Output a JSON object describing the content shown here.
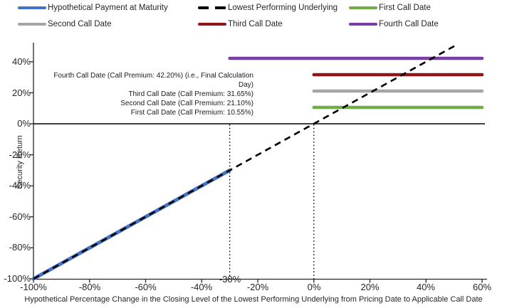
{
  "chart_data": {
    "type": "line",
    "title": "",
    "xlabel": "Hypothetical Percentage Change in the Closing Level of the Lowest Performing Underlying from Pricing Date to Applicable Call Date",
    "ylabel": "Security Return",
    "xlim": [
      -100,
      60
    ],
    "ylim": [
      -100,
      50
    ],
    "grid": false,
    "legend_position": "top",
    "x_ticks": [
      -100,
      -80,
      -60,
      -40,
      -20,
      0,
      20,
      40,
      60
    ],
    "x_tick_labels": [
      "-100%",
      "-80%",
      "-60%",
      "-40%",
      "-20%",
      "0%",
      "20%",
      "40%",
      "60%"
    ],
    "y_ticks": [
      40,
      20,
      0,
      -20,
      -40,
      -60,
      -80,
      -100
    ],
    "y_tick_labels": [
      "40%",
      "20%",
      "0%",
      "-20%",
      "-40%",
      "-60%",
      "-80%",
      "-100%"
    ],
    "threshold_label": "-30%",
    "reference_lines": {
      "vertical_dotted_x": [
        -30,
        0
      ],
      "horizontal_solid_y": 0
    },
    "series": [
      {
        "name": "First Call Date",
        "color": "#70AD47",
        "style": "solid",
        "stroke_width": 4.5,
        "call_premium": 10.55,
        "points": [
          [
            0,
            10.55
          ],
          [
            60,
            10.55
          ]
        ]
      },
      {
        "name": "Second Call Date",
        "color": "#A6A6A6",
        "style": "solid",
        "stroke_width": 4.5,
        "call_premium": 21.1,
        "points": [
          [
            0,
            21.1
          ],
          [
            60,
            21.1
          ]
        ]
      },
      {
        "name": "Third Call Date",
        "color": "#8E1616",
        "style": "solid",
        "stroke_width": 4.5,
        "call_premium": 31.65,
        "points": [
          [
            0,
            31.65
          ],
          [
            60,
            31.65
          ]
        ]
      },
      {
        "name": "Fourth Call Date",
        "color": "#7C3CA6",
        "style": "solid",
        "stroke_width": 4.5,
        "call_premium": 42.2,
        "points": [
          [
            -30,
            42.2
          ],
          [
            60,
            42.2
          ]
        ]
      },
      {
        "name": "Hypothetical Payment at Maturity",
        "color": "#4472C4",
        "style": "solid",
        "stroke_width": 5,
        "points": [
          [
            -100,
            -100
          ],
          [
            -30,
            -30
          ]
        ]
      },
      {
        "name": "Lowest Performing Underlying",
        "color": "#000000",
        "style": "dashed",
        "stroke_width": 2.6,
        "dash": "9 6.5",
        "points": [
          [
            -100,
            -100
          ],
          [
            51,
            51
          ]
        ]
      }
    ],
    "annotations": [
      "Fourth Call Date (Call Premium: 42.20%) (i.e., Final Calculation Day)",
      "Third Call Date (Call Premium: 31.65%)",
      "Second Call Date (Call Premium: 21.10%)",
      "First Call Date (Call Premium: 10.55%)"
    ]
  },
  "legend": {
    "items": [
      {
        "label": "Hypothetical Payment at Maturity",
        "color": "#4472C4",
        "style": "solid"
      },
      {
        "label": "Lowest Performing Underlying",
        "color": "#000000",
        "style": "dashed"
      },
      {
        "label": "First Call Date",
        "color": "#70AD47",
        "style": "solid"
      },
      {
        "label": "Second Call Date",
        "color": "#A6A6A6",
        "style": "solid"
      },
      {
        "label": "Third Call Date",
        "color": "#8E1616",
        "style": "solid"
      },
      {
        "label": "Fourth Call Date",
        "color": "#7C3CA6",
        "style": "solid"
      }
    ]
  }
}
